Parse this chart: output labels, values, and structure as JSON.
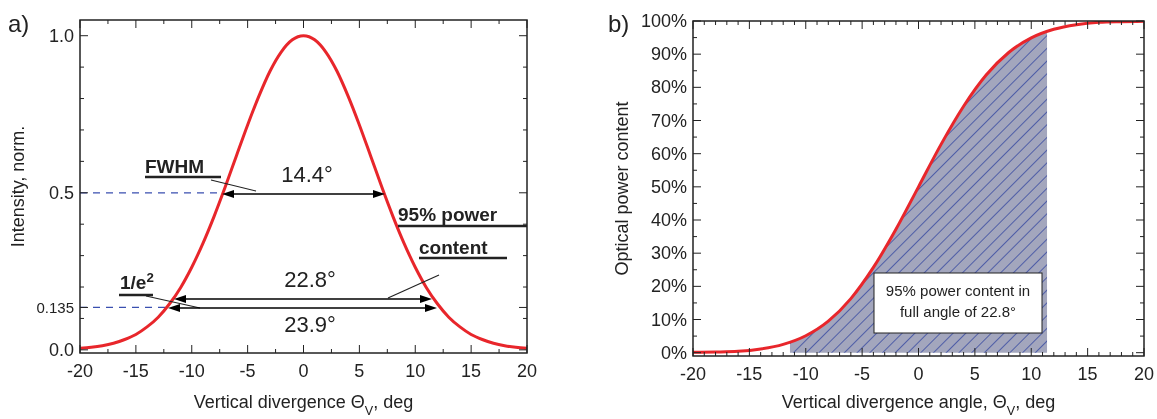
{
  "chart_data": [
    {
      "type": "line",
      "title": "a)",
      "xlabel": "Vertical divergence Θ$_{V}$, deg",
      "ylabel": "Intensity, norm.",
      "xlim": [
        -20,
        20
      ],
      "xticks": [
        -20,
        {
          "value": -17.5,
          "label": null
        },
        -15,
        {
          "value": -12.5,
          "label": null
        },
        -10,
        {
          "value": -7.5,
          "label": null
        },
        -5,
        {
          "value": -2.5,
          "label": null
        },
        0,
        {
          "value": 2.5,
          "label": null
        },
        5,
        {
          "value": 7.5,
          "label": null
        },
        10,
        {
          "value": 12.5,
          "label": null
        },
        15,
        {
          "value": 17.5,
          "label": null
        },
        20
      ],
      "ylim": [
        -0.01,
        1.05
      ],
      "yticks": [
        {
          "value": 0,
          "label": "0.0"
        },
        {
          "value": 0.1,
          "label": null
        },
        {
          "value": 0.135,
          "label": "0.135"
        },
        {
          "value": 0.2,
          "label": null
        },
        {
          "value": 0.3,
          "label": null
        },
        {
          "value": 0.4,
          "label": null
        },
        {
          "value": 0.5,
          "label": "0.5"
        },
        {
          "value": 0.6,
          "label": null
        },
        {
          "value": 0.7,
          "label": null
        },
        {
          "value": 0.8,
          "label": null
        },
        {
          "value": 0.9,
          "label": null
        },
        {
          "value": 1.0,
          "label": "1.0"
        }
      ],
      "x": [
        -20,
        -19,
        -18,
        -17,
        -16,
        -15,
        -14,
        -13,
        -12,
        -11,
        -10,
        -9,
        -8,
        -7,
        -6,
        -5,
        -4,
        -3,
        -2,
        -1,
        0,
        1,
        2,
        3,
        4,
        5,
        6,
        7,
        8,
        9,
        10,
        11,
        12,
        13,
        14,
        15,
        16,
        17,
        18,
        19,
        20
      ],
      "series": [
        {
          "color": "#e8262b",
          "values": [
            0.005,
            0.008,
            0.013,
            0.021,
            0.033,
            0.049,
            0.073,
            0.104,
            0.146,
            0.198,
            0.263,
            0.339,
            0.425,
            0.519,
            0.618,
            0.716,
            0.807,
            0.887,
            0.948,
            0.987,
            1,
            0.987,
            0.948,
            0.887,
            0.807,
            0.716,
            0.618,
            0.519,
            0.425,
            0.339,
            0.263,
            0.198,
            0.146,
            0.104,
            0.073,
            0.049,
            0.033,
            0.021,
            0.013,
            0.008,
            0.005
          ]
        }
      ],
      "ref_lines": [
        {
          "axis": "y",
          "value": 0.5,
          "color": "#3a4fb0",
          "line_style": "dashed"
        },
        {
          "axis": "y",
          "value": 0.135,
          "color": "#3a4fb0",
          "line_style": "dashed"
        }
      ],
      "annotations": [
        "FWHM",
        "95% power content",
        "1/e$^{2}$",
        "14.4°",
        "22.8°",
        "23.9°"
      ]
    },
    {
      "type": "line",
      "title": "b)",
      "xlabel": "Vertical divergence angle, Θ$_{V}$, deg",
      "ylabel": "Optical power content",
      "xlim": [
        -20,
        20
      ],
      "xticks": [
        -20,
        {
          "value": -19,
          "label": null
        },
        {
          "value": -18,
          "label": null
        },
        {
          "value": -17,
          "label": null
        },
        {
          "value": -16,
          "label": null
        },
        -15,
        {
          "value": -14,
          "label": null
        },
        {
          "value": -13,
          "label": null
        },
        {
          "value": -12,
          "label": null
        },
        {
          "value": -11,
          "label": null
        },
        -10,
        {
          "value": -9,
          "label": null
        },
        {
          "value": -8,
          "label": null
        },
        {
          "value": -7,
          "label": null
        },
        {
          "value": -6,
          "label": null
        },
        -5,
        {
          "value": -4,
          "label": null
        },
        {
          "value": -3,
          "label": null
        },
        {
          "value": -2,
          "label": null
        },
        {
          "value": -1,
          "label": null
        },
        0,
        {
          "value": 1,
          "label": null
        },
        {
          "value": 2,
          "label": null
        },
        {
          "value": 3,
          "label": null
        },
        {
          "value": 4,
          "label": null
        },
        5,
        {
          "value": 6,
          "label": null
        },
        {
          "value": 7,
          "label": null
        },
        {
          "value": 8,
          "label": null
        },
        {
          "value": 9,
          "label": null
        },
        10,
        {
          "value": 11,
          "label": null
        },
        {
          "value": 12,
          "label": null
        },
        {
          "value": 13,
          "label": null
        },
        {
          "value": 14,
          "label": null
        },
        15,
        {
          "value": 16,
          "label": null
        },
        {
          "value": 17,
          "label": null
        },
        {
          "value": 18,
          "label": null
        },
        {
          "value": 19,
          "label": null
        },
        20
      ],
      "ylim": [
        -1,
        100
      ],
      "yticks": [
        {
          "value": 0,
          "label": "0%"
        },
        {
          "value": 5,
          "label": null
        },
        {
          "value": 10,
          "label": "10%"
        },
        {
          "value": 15,
          "label": null
        },
        {
          "value": 20,
          "label": "20%"
        },
        {
          "value": 25,
          "label": null
        },
        {
          "value": 30,
          "label": "30%"
        },
        {
          "value": 35,
          "label": null
        },
        {
          "value": 40,
          "label": "40%"
        },
        {
          "value": 45,
          "label": null
        },
        {
          "value": 50,
          "label": "50%"
        },
        {
          "value": 55,
          "label": null
        },
        {
          "value": 60,
          "label": "60%"
        },
        {
          "value": 65,
          "label": null
        },
        {
          "value": 70,
          "label": "70%"
        },
        {
          "value": 75,
          "label": null
        },
        {
          "value": 80,
          "label": "80%"
        },
        {
          "value": 85,
          "label": null
        },
        {
          "value": 90,
          "label": "90%"
        },
        {
          "value": 95,
          "label": null
        },
        {
          "value": 100,
          "label": "100%"
        }
      ],
      "x": [
        -20,
        -18,
        -16,
        -14,
        -12,
        -10,
        -8,
        -6,
        -4,
        -2,
        0,
        2,
        4,
        6,
        8,
        10,
        12,
        14,
        16,
        18,
        20
      ],
      "series": [
        {
          "type": "area",
          "color": "#a3a6bd",
          "x": [
            -11.4,
            -10,
            -8,
            -6,
            -4,
            -2,
            0,
            2,
            4,
            6,
            8,
            10,
            11.4
          ],
          "values": [
            3.1,
            5.1,
            9.5,
            16.3,
            25.7,
            37.2,
            50,
            62.8,
            74.3,
            83.7,
            90.5,
            94.9,
            96.9
          ]
        },
        {
          "color": "#e8262b",
          "values": [
            0.1,
            0.2,
            0.4,
            1.1,
            2.5,
            5.1,
            9.5,
            16.3,
            25.7,
            37.2,
            50,
            62.8,
            74.3,
            83.7,
            90.5,
            94.9,
            97.5,
            98.9,
            99.6,
            99.8,
            99.9
          ]
        }
      ],
      "annotations": [
        "95% power content in full angle of 22.8°"
      ]
    }
  ]
}
